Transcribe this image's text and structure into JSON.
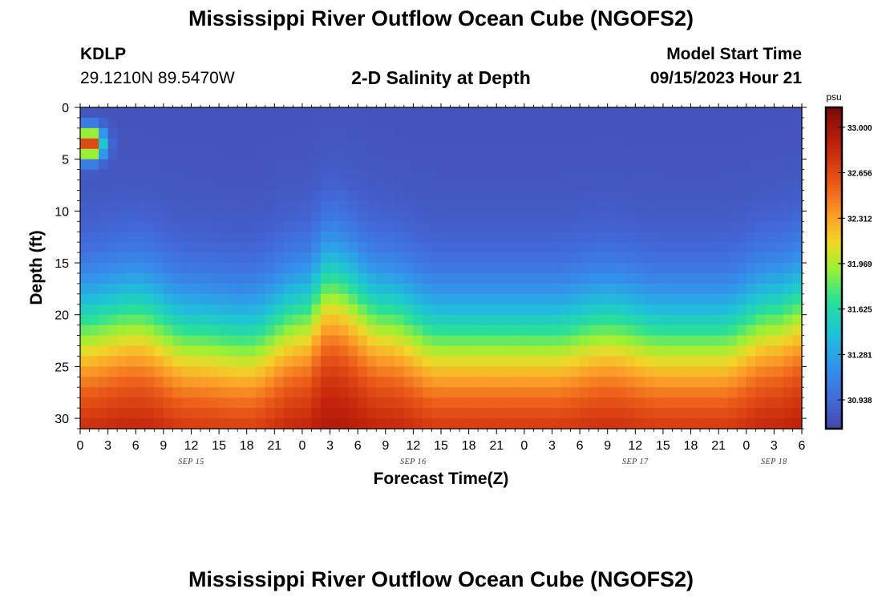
{
  "chart_data": {
    "type": "heatmap",
    "title": "Mississippi River Outflow Ocean Cube (NGOFS2)",
    "subtitle": "2-D Salinity at Depth",
    "station": {
      "id": "KDLP",
      "coordinates": "29.1210N  89.5470W"
    },
    "model_start": {
      "label": "Model Start Time",
      "value": "09/15/2023 Hour 21"
    },
    "xlabel": "Forecast Time(Z)",
    "ylabel": "Depth (ft)",
    "x_ticks": [
      "0",
      "3",
      "6",
      "9",
      "12",
      "15",
      "18",
      "21",
      "0",
      "3",
      "6",
      "9",
      "12",
      "15",
      "18",
      "21",
      "0",
      "3",
      "6",
      "9",
      "12",
      "15",
      "18",
      "21",
      "0",
      "3",
      "6"
    ],
    "x_range_hours": [
      0,
      78
    ],
    "x_dates": [
      {
        "label": "SEP 15",
        "hour": 12
      },
      {
        "label": "SEP 16",
        "hour": 36
      },
      {
        "label": "SEP 17",
        "hour": 60
      },
      {
        "label": "SEP 18",
        "hour": 75
      }
    ],
    "y_ticks": [
      "0",
      "5",
      "10",
      "15",
      "20",
      "25",
      "30"
    ],
    "y_tick_values": [
      0,
      5,
      10,
      15,
      20,
      25,
      30
    ],
    "y_range": [
      0,
      31
    ],
    "colorbar": {
      "unit": "psu",
      "range": [
        30.72,
        33.15
      ],
      "ticks": [
        "33.000",
        "32.656",
        "32.312",
        "31.969",
        "31.625",
        "31.281",
        "30.938"
      ],
      "tick_values": [
        33.0,
        32.656,
        32.312,
        31.969,
        31.625,
        31.281,
        30.938
      ]
    },
    "salinity_model": {
      "surface_psu": 30.8,
      "bottom_psu": 33.05,
      "halocline_depth_ft_by_hour": [
        [
          0,
          20
        ],
        [
          6,
          19
        ],
        [
          12,
          21
        ],
        [
          18,
          21.5
        ],
        [
          24,
          19
        ],
        [
          27,
          16
        ],
        [
          33,
          19
        ],
        [
          39,
          21
        ],
        [
          45,
          21
        ],
        [
          51,
          21
        ],
        [
          57,
          20
        ],
        [
          63,
          21
        ],
        [
          69,
          21
        ],
        [
          75,
          19
        ],
        [
          78,
          18
        ]
      ],
      "surface_anomaly": {
        "hour": 1,
        "depth_ft": 3.5,
        "psu": 32.9
      }
    }
  },
  "footer": {
    "repeated_title": "Mississippi River Outflow Ocean Cube (NGOFS2)"
  },
  "colors": {
    "frame": "#000000",
    "background": "#ffffff"
  }
}
